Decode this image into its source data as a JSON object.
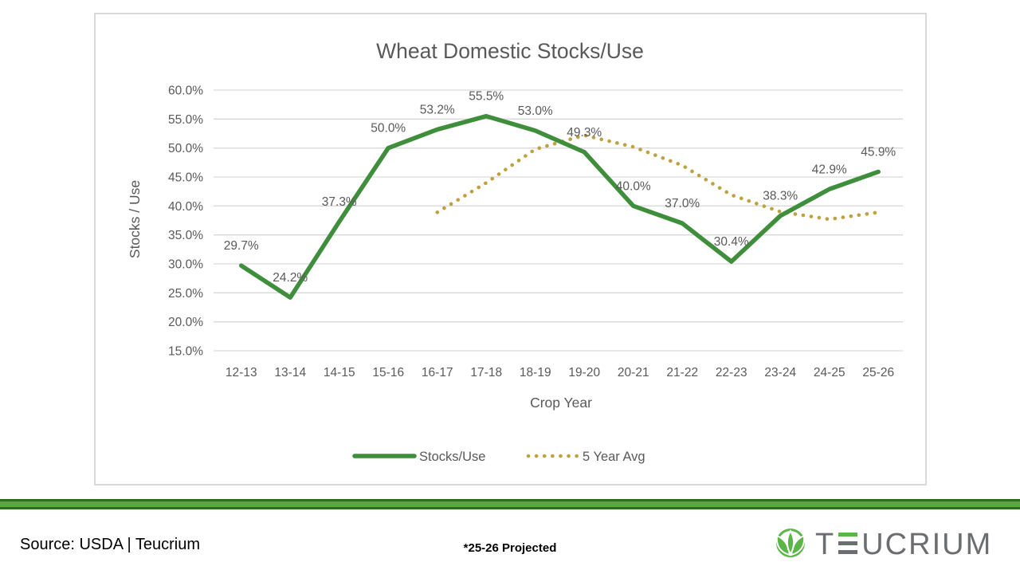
{
  "chart_data": {
    "type": "line",
    "title": "Wheat Domestic Stocks/Use",
    "xlabel": "Crop Year",
    "ylabel": "Stocks / Use",
    "categories": [
      "12-13",
      "13-14",
      "14-15",
      "15-16",
      "16-17",
      "17-18",
      "18-19",
      "19-20",
      "20-21",
      "21-22",
      "22-23",
      "23-24",
      "24-25",
      "25-26"
    ],
    "series": [
      {
        "name": "Stocks/Use",
        "style": "solid",
        "color": "#3E8E3C",
        "values": [
          29.7,
          24.2,
          37.3,
          50.0,
          53.2,
          55.5,
          53.0,
          49.3,
          40.0,
          37.0,
          30.4,
          38.3,
          42.9,
          45.9
        ],
        "data_labels": true
      },
      {
        "name": "5 Year Avg",
        "style": "dotted",
        "color": "#BFA23E",
        "values": [
          null,
          null,
          null,
          null,
          38.9,
          44.0,
          49.8,
          52.2,
          50.2,
          47.0,
          41.9,
          39.0,
          37.7,
          38.9
        ],
        "data_labels": false
      }
    ],
    "ylim": [
      15,
      60
    ],
    "yticks": [
      60,
      55,
      50,
      45,
      40,
      35,
      30,
      25,
      20,
      15
    ],
    "ytick_labels": [
      "60.0%",
      "55.0%",
      "50.0%",
      "45.0%",
      "40.0%",
      "35.0%",
      "30.0%",
      "25.0%",
      "20.0%",
      "15.0%"
    ],
    "grid": "horizontal",
    "legend_position": "bottom"
  },
  "footer": {
    "source": "Source: USDA | Teucrium",
    "note": "*25-26 Projected",
    "logo_text": "TEUCRIUM"
  },
  "colors": {
    "text_gray": "#595959",
    "grid_gray": "#D9D9D9",
    "frame_border": "#D9D9D9",
    "stocks_use_green": "#3E8E3C",
    "five_year_avg_gold": "#BFA23E",
    "divider_fill": "#58A93C",
    "divider_edge": "#2C701F",
    "logo_green": "#5CB647",
    "logo_gray": "#6B6D70"
  }
}
